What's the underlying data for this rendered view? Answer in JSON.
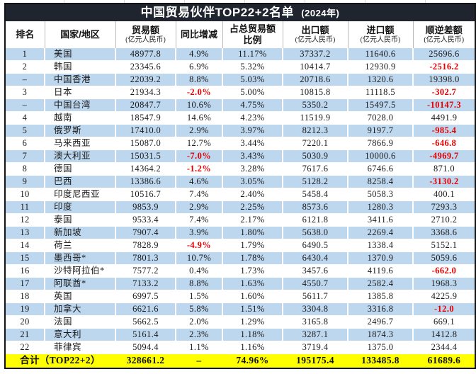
{
  "title": {
    "main": "中国贸易伙伴TOP22+2名单",
    "year": "(2024年)"
  },
  "columns": [
    {
      "label": "排名",
      "sub": ""
    },
    {
      "label": "国家/地区",
      "sub": ""
    },
    {
      "label": "贸易额",
      "sub": "(亿元人民币)"
    },
    {
      "label": "同比增减",
      "sub": ""
    },
    {
      "label": "占总贸易额",
      "label2": "比例",
      "sub": ""
    },
    {
      "label": "出口额",
      "sub": "(亿元人民币)"
    },
    {
      "label": "进口额",
      "sub": "(亿元人民币)"
    },
    {
      "label": "顺逆差额",
      "sub": "(亿元人民币)"
    }
  ],
  "rows": [
    {
      "rank": "1",
      "country": "美国",
      "trade": "48977.8",
      "yoy": "4.9%",
      "share": "11.17%",
      "export": "37337.2",
      "import": "11640.6",
      "balance": "25696.6"
    },
    {
      "rank": "2",
      "country": "韩国",
      "trade": "23345.6",
      "yoy": "6.9%",
      "share": "5.32%",
      "export": "10414.7",
      "import": "12930.9",
      "balance": "-2516.2"
    },
    {
      "rank": "–",
      "country": "中国香港",
      "trade": "22039.2",
      "yoy": "8.8%",
      "share": "5.03%",
      "export": "20718.6",
      "import": "1320.6",
      "balance": "19398.0"
    },
    {
      "rank": "3",
      "country": "日本",
      "trade": "21934.3",
      "yoy": "-2.0%",
      "share": "5.00%",
      "export": "10815.8",
      "import": "11118.5",
      "balance": "-302.7"
    },
    {
      "rank": "–",
      "country": "中国台湾",
      "trade": "20847.7",
      "yoy": "10.6%",
      "share": "4.75%",
      "export": "5350.2",
      "import": "15497.5",
      "balance": "-10147.3"
    },
    {
      "rank": "4",
      "country": "越南",
      "trade": "18547.9",
      "yoy": "14.6%",
      "share": "4.23%",
      "export": "11519.9",
      "import": "7028.0",
      "balance": "4491.9"
    },
    {
      "rank": "5",
      "country": "俄罗斯",
      "trade": "17410.0",
      "yoy": "2.9%",
      "share": "3.97%",
      "export": "8212.3",
      "import": "9197.7",
      "balance": "-985.4"
    },
    {
      "rank": "6",
      "country": "马来西亚",
      "trade": "15087.0",
      "yoy": "12.7%",
      "share": "3.44%",
      "export": "7220.1",
      "import": "7866.9",
      "balance": "-646.8"
    },
    {
      "rank": "7",
      "country": "澳大利亚",
      "trade": "15031.5",
      "yoy": "-7.0%",
      "share": "3.43%",
      "export": "5030.9",
      "import": "10000.6",
      "balance": "-4969.7"
    },
    {
      "rank": "8",
      "country": "德国",
      "trade": "14364.2",
      "yoy": "-1.2%",
      "share": "3.28%",
      "export": "7617.6",
      "import": "6746.6",
      "balance": "871.0"
    },
    {
      "rank": "9",
      "country": "巴西",
      "trade": "13386.6",
      "yoy": "4.6%",
      "share": "3.05%",
      "export": "5128.2",
      "import": "8258.4",
      "balance": "-3130.2"
    },
    {
      "rank": "10",
      "country": "印度尼西亚",
      "trade": "10516.7",
      "yoy": "7.4%",
      "share": "2.40%",
      "export": "5458.4",
      "import": "5058.3",
      "balance": "400.1"
    },
    {
      "rank": "11",
      "country": "印度",
      "trade": "9853.9",
      "yoy": "2.9%",
      "share": "2.25%",
      "export": "8573.6",
      "import": "1280.3",
      "balance": "7293.3"
    },
    {
      "rank": "12",
      "country": "泰国",
      "trade": "9533.4",
      "yoy": "7.4%",
      "share": "2.17%",
      "export": "6121.8",
      "import": "3411.6",
      "balance": "2710.2"
    },
    {
      "rank": "13",
      "country": "新加坡",
      "trade": "7907.4",
      "yoy": "3.9%",
      "share": "1.80%",
      "export": "5638.0",
      "import": "2269.4",
      "balance": "3368.6"
    },
    {
      "rank": "14",
      "country": "荷兰",
      "trade": "7828.9",
      "yoy": "-4.9%",
      "share": "1.79%",
      "export": "6490.5",
      "import": "1338.4",
      "balance": "5152.1"
    },
    {
      "rank": "15",
      "country": "墨西哥*",
      "trade": "7801.3",
      "yoy": "10.7%",
      "share": "1.78%",
      "export": "6430.4",
      "import": "1370.9",
      "balance": "5059.6"
    },
    {
      "rank": "16",
      "country": "沙特阿拉伯*",
      "trade": "7577.2",
      "yoy": "0.4%",
      "share": "1.73%",
      "export": "3457.6",
      "import": "4119.6",
      "balance": "-662.0"
    },
    {
      "rank": "17",
      "country": "阿联酋*",
      "trade": "7133.2",
      "yoy": "8.8%",
      "share": "1.63%",
      "export": "4550.7",
      "import": "2582.4",
      "balance": "1968.3"
    },
    {
      "rank": "18",
      "country": "英国",
      "trade": "6997.5",
      "yoy": "1.5%",
      "share": "1.60%",
      "export": "5611.7",
      "import": "1385.8",
      "balance": "4225.9"
    },
    {
      "rank": "19",
      "country": "加拿大",
      "trade": "6621.6",
      "yoy": "5.8%",
      "share": "1.51%",
      "export": "3304.8",
      "import": "3316.8",
      "balance": "-12.0"
    },
    {
      "rank": "20",
      "country": "法国",
      "trade": "5662.5",
      "yoy": "2.0%",
      "share": "1.29%",
      "export": "3165.8",
      "import": "2496.7",
      "balance": "669.1"
    },
    {
      "rank": "21",
      "country": "意大利",
      "trade": "5161.4",
      "yoy": "2.3%",
      "share": "1.18%",
      "export": "3287.1",
      "import": "1874.3",
      "balance": "1412.8"
    },
    {
      "rank": "22",
      "country": "菲律宾",
      "trade": "5094.4",
      "yoy": "1.1%",
      "share": "1.16%",
      "export": "3719.4",
      "import": "1375.0",
      "balance": "2344.4"
    }
  ],
  "total": {
    "label": "合计（TOP22+2）",
    "trade": "328661.2",
    "yoy": "–",
    "share": "74.96%",
    "export": "195175.4",
    "import": "133485.8",
    "balance": "61689.6"
  },
  "colors": {
    "title_bar": "#20242e",
    "stripe_blue": "#bdd7ee",
    "total_yellow": "#ffff00",
    "negative_red": "#e60000"
  }
}
